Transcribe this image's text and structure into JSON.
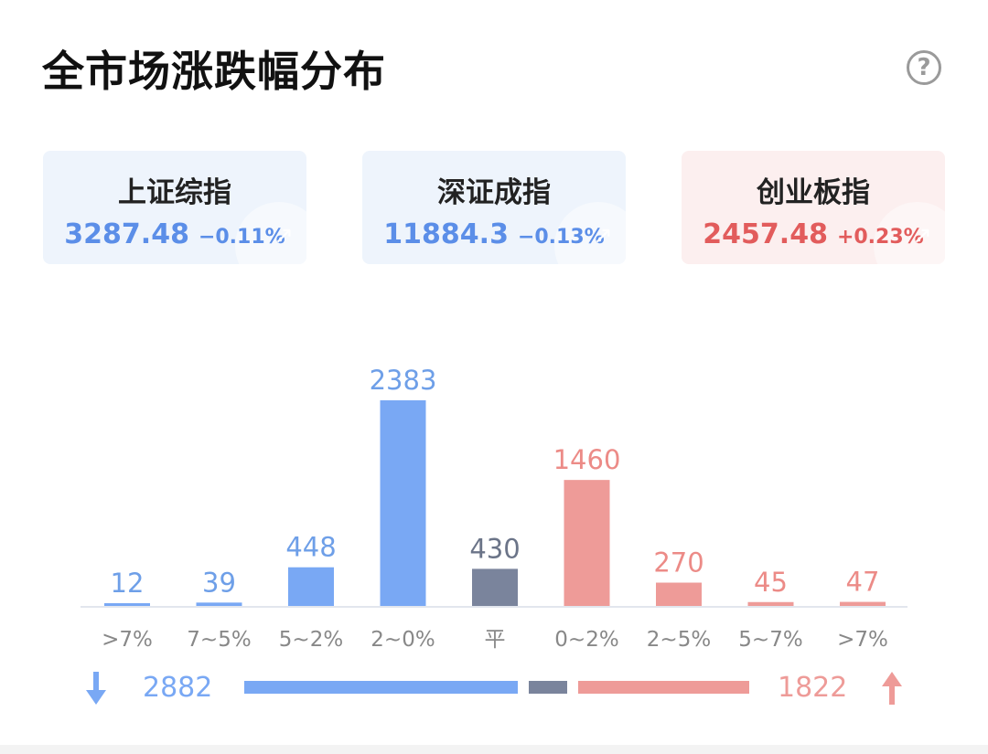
{
  "page": {
    "title": "全市场涨跌幅分布",
    "help_icon": "question-circle-icon",
    "help_glyph": "?"
  },
  "indices": [
    {
      "name": "上证综指",
      "value": "3287.48",
      "change": "−0.11%",
      "direction": "down",
      "color": "#5b8ee8",
      "bg": "#eef4fc"
    },
    {
      "name": "深证成指",
      "value": "11884.3",
      "change": "−0.13%",
      "direction": "down",
      "color": "#5b8ee8",
      "bg": "#eef4fc"
    },
    {
      "name": "创业板指",
      "value": "2457.48",
      "change": "+0.23%",
      "direction": "up",
      "color": "#e25c5c",
      "bg": "#fcefef"
    }
  ],
  "chart_data": {
    "type": "bar",
    "categories": [
      ">7%",
      "7~5%",
      "5~2%",
      "2~0%",
      "平",
      "0~2%",
      "2~5%",
      "5~7%",
      ">7%"
    ],
    "values": [
      12,
      39,
      448,
      2383,
      430,
      1460,
      270,
      45,
      47
    ],
    "bar_colors": [
      "#79a8f4",
      "#79a8f4",
      "#79a8f4",
      "#79a8f4",
      "#7a849c",
      "#ee9b98",
      "#ee9b98",
      "#ee9b98",
      "#ee9b98"
    ],
    "label_colors": [
      "#6e9fe8",
      "#6e9fe8",
      "#6e9fe8",
      "#6e9fe8",
      "#6b7488",
      "#ec8b87",
      "#ec8b87",
      "#ec8b87",
      "#ec8b87"
    ],
    "axis_color": "#e2e6ee",
    "tick_color": "#888888",
    "ylim": [
      0,
      2383
    ]
  },
  "summary": {
    "down_count": "2882",
    "flat_count": "430",
    "up_count": "1822",
    "down_color": "#79a8f4",
    "flat_color": "#7a849c",
    "up_color": "#ee9b98",
    "down_icon": "arrow-down-icon",
    "up_icon": "arrow-up-icon"
  }
}
